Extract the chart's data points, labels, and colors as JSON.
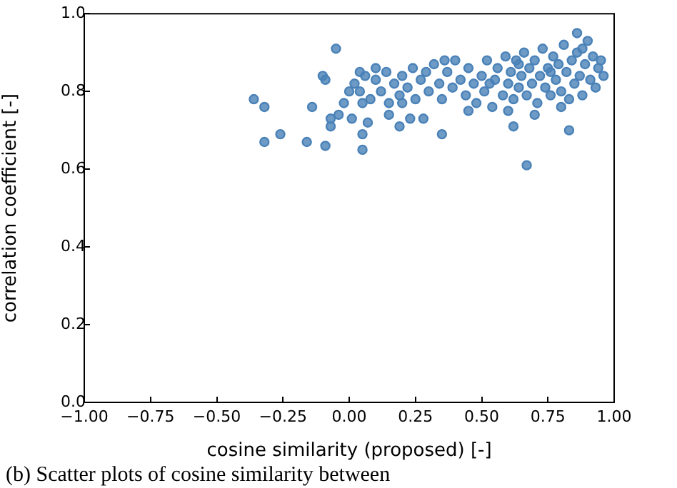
{
  "chart_data": {
    "type": "scatter",
    "xlabel": "cosine similarity (proposed) [-]",
    "ylabel": "correlation coefficient [-]",
    "annotations": [
      "(b) Scatter plots of cosine similarity between"
    ],
    "xlim": [
      -1,
      1
    ],
    "ylim": [
      0,
      1
    ],
    "xticks": [
      {
        "value": -1,
        "label": "−1.00"
      },
      {
        "value": -0.75,
        "label": "−0.75"
      },
      {
        "value": -0.5,
        "label": "−0.50"
      },
      {
        "value": -0.25,
        "label": "−0.25"
      },
      {
        "value": 0,
        "label": "0.00"
      },
      {
        "value": 0.25,
        "label": "0.25"
      },
      {
        "value": 0.5,
        "label": "0.50"
      },
      {
        "value": 0.75,
        "label": "0.75"
      },
      {
        "value": 1,
        "label": "1.00"
      }
    ],
    "yticks": [
      {
        "value": 0,
        "label": "0.0"
      },
      {
        "value": 0.2,
        "label": "0.2"
      },
      {
        "value": 0.4,
        "label": "0.4"
      },
      {
        "value": 0.6,
        "label": "0.6"
      },
      {
        "value": 0.8,
        "label": "0.8"
      },
      {
        "value": 1,
        "label": "1.0"
      }
    ],
    "grid": false,
    "legend": false,
    "marker": "circle",
    "series": [
      {
        "color": "#4a82b8",
        "x": [
          -0.36,
          -0.32,
          -0.32,
          -0.26,
          -0.16,
          -0.09,
          -0.14,
          -0.05,
          -0.1,
          -0.09,
          0.04,
          0.05,
          0.05,
          -0.07,
          -0.02,
          -0.04,
          0,
          0.01,
          -0.07,
          0.15,
          0.19,
          0.23,
          0.28,
          0.35,
          0.62,
          0.67,
          0.83,
          0.86,
          0.07,
          0.05,
          0.02,
          0.04,
          0.06,
          0.08,
          0.1,
          0.12,
          0.14,
          0.15,
          0.17,
          0.19,
          0.2,
          0.22,
          0.24,
          0.25,
          0.27,
          0.29,
          0.3,
          0.32,
          0.34,
          0.35,
          0.37,
          0.39,
          0.4,
          0.42,
          0.44,
          0.45,
          0.47,
          0.48,
          0.5,
          0.51,
          0.52,
          0.54,
          0.55,
          0.56,
          0.58,
          0.59,
          0.6,
          0.61,
          0.62,
          0.63,
          0.64,
          0.65,
          0.66,
          0.67,
          0.68,
          0.69,
          0.7,
          0.71,
          0.72,
          0.73,
          0.74,
          0.75,
          0.76,
          0.77,
          0.78,
          0.79,
          0.8,
          0.81,
          0.82,
          0.83,
          0.84,
          0.85,
          0.86,
          0.87,
          0.88,
          0.89,
          0.9,
          0.91,
          0.92,
          0.93,
          0.94,
          0.95,
          0.96,
          0.6,
          0.7,
          0.8,
          0.45,
          0.88,
          0.64,
          0.76,
          0.53,
          0.36,
          0.2,
          0.1
        ],
        "values": [
          0.78,
          0.76,
          0.67,
          0.69,
          0.67,
          0.66,
          0.76,
          0.91,
          0.84,
          0.83,
          0.85,
          0.65,
          0.69,
          0.73,
          0.77,
          0.74,
          0.8,
          0.73,
          0.71,
          0.74,
          0.71,
          0.73,
          0.73,
          0.69,
          0.71,
          0.61,
          0.7,
          0.95,
          0.72,
          0.77,
          0.82,
          0.8,
          0.84,
          0.78,
          0.83,
          0.8,
          0.85,
          0.77,
          0.82,
          0.79,
          0.84,
          0.81,
          0.86,
          0.78,
          0.83,
          0.85,
          0.8,
          0.87,
          0.82,
          0.78,
          0.85,
          0.81,
          0.88,
          0.83,
          0.79,
          0.86,
          0.82,
          0.77,
          0.84,
          0.8,
          0.88,
          0.76,
          0.83,
          0.86,
          0.79,
          0.89,
          0.82,
          0.85,
          0.78,
          0.88,
          0.81,
          0.84,
          0.9,
          0.79,
          0.86,
          0.82,
          0.88,
          0.77,
          0.84,
          0.91,
          0.81,
          0.86,
          0.79,
          0.89,
          0.83,
          0.87,
          0.8,
          0.92,
          0.85,
          0.78,
          0.88,
          0.82,
          0.9,
          0.84,
          0.79,
          0.87,
          0.93,
          0.83,
          0.89,
          0.81,
          0.86,
          0.88,
          0.84,
          0.75,
          0.74,
          0.76,
          0.75,
          0.91,
          0.87,
          0.85,
          0.82,
          0.88,
          0.77,
          0.86
        ]
      }
    ]
  }
}
